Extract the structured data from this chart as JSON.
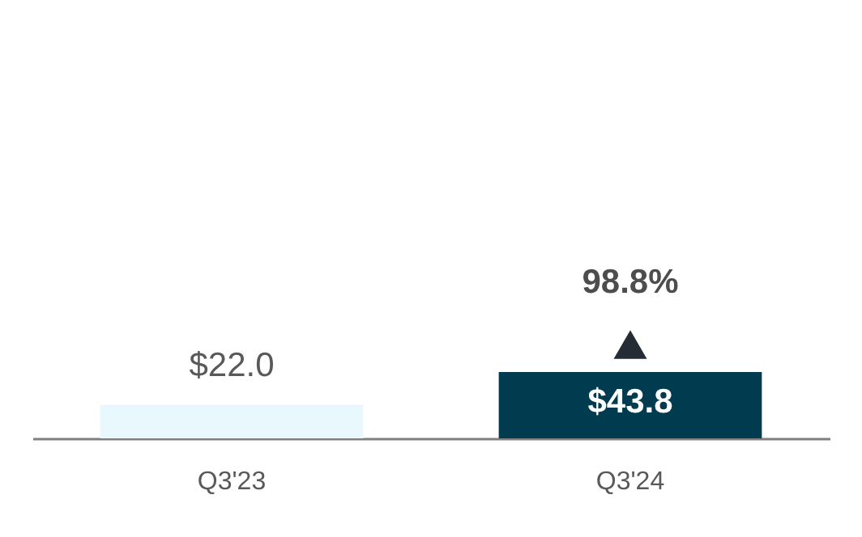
{
  "chart_data": {
    "type": "bar",
    "categories": [
      "Q3'23",
      "Q3'24"
    ],
    "values": [
      22.0,
      43.8
    ],
    "colors": [
      "#e9f8fd",
      "#003b4f"
    ],
    "value_labels": [
      "$22.0",
      "$43.8"
    ],
    "annotations": [
      "98.8%"
    ]
  }
}
